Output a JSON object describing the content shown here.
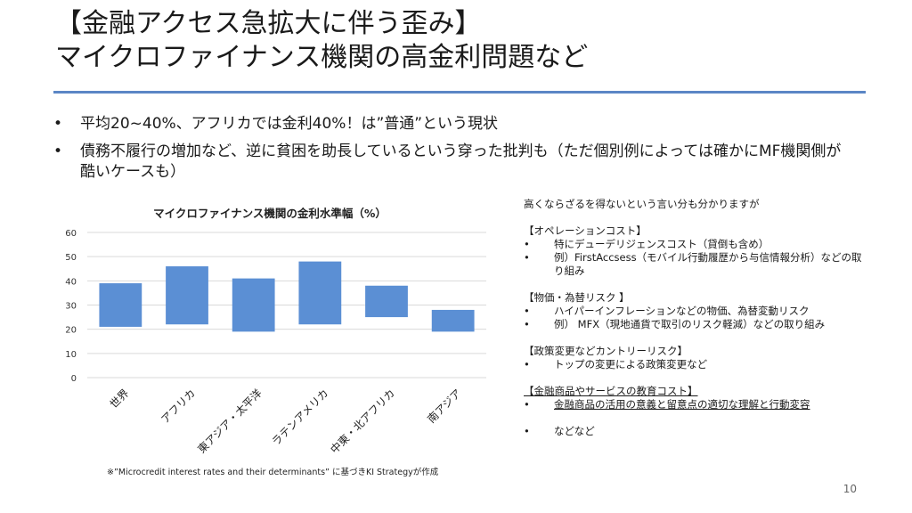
{
  "slide": {
    "title_line1": "【金融アクセス急拡大に伴う歪み】",
    "title_line2": "マイクロファイナンス機関の高金利問題など",
    "page_number": "10"
  },
  "bullets": [
    "平均20~40%、アフリカでは金利40%！は”普通”という現状",
    "債務不履行の増加など、逆に貧困を助長しているという穿った批判も（ただ個別例によっては確かにMF機関側が酷いケースも）"
  ],
  "bullet_marker": "•",
  "chart_data": {
    "type": "bar",
    "title": "マイクロファイナンス機関の金利水準幅（%）",
    "categories": [
      "世界",
      "アフリカ",
      "東アジア・太平洋",
      "ラテンアメリカ",
      "中東・北アフリカ",
      "南アジア"
    ],
    "ranges": [
      [
        21,
        39
      ],
      [
        22,
        46
      ],
      [
        19,
        41
      ],
      [
        22,
        48
      ],
      [
        25,
        38
      ],
      [
        19,
        28
      ]
    ],
    "ylim": [
      0,
      60
    ],
    "yticks": [
      "0",
      "10",
      "20",
      "30",
      "40",
      "50",
      "60"
    ],
    "grid": true,
    "bar_color": "#5b8fd4"
  },
  "source_note": "※”Microcredit interest rates and their determinants” に基づきKI Strategyが作成",
  "side": {
    "intro": "高くならざるを得ないという言い分も分かりますが",
    "marker": "•",
    "sections": [
      {
        "heading": "【オペレーションコスト】",
        "items": [
          "特にデューデリジェンスコスト（貸倒も含め）",
          "例）FirstAccsess（モバイル行動履歴から与信情報分析）などの取り組み"
        ]
      },
      {
        "heading": "【物価・為替リスク 】",
        "items": [
          "ハイパーインフレーションなどの物価、為替変動リスク",
          "例） MFX（現地通貨で取引のリスク軽減）などの取り組み"
        ]
      },
      {
        "heading": "【政策変更などカントリーリスク】",
        "items": [
          "トップの変更による政策変更など"
        ]
      },
      {
        "heading": "【金融商品やサービスの教育コスト】",
        "items": [
          "金融商品の活用の意義と留意点の適切な理解と行動変容",
          "などなど"
        ]
      }
    ]
  }
}
